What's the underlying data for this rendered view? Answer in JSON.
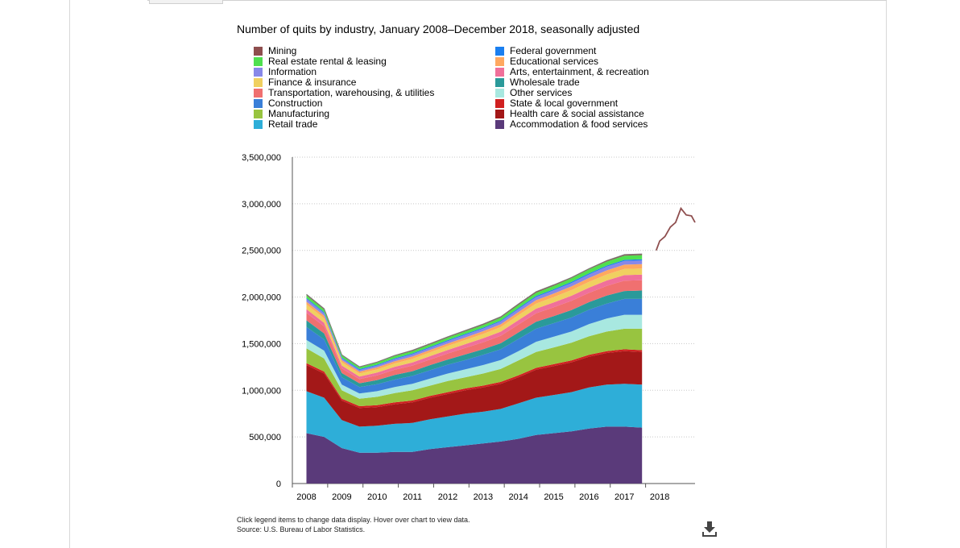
{
  "chart_data": {
    "type": "area",
    "stacked": true,
    "title": "Number of quits by industry, January 2008–December 2018, seasonally adjusted",
    "xlabel": "",
    "ylabel": "",
    "x_tick_labels": [
      "2008",
      "2009",
      "2010",
      "2011",
      "2012",
      "2013",
      "2014",
      "2015",
      "2016",
      "2017",
      "2018"
    ],
    "y_tick_labels": [
      "0",
      "500,000",
      "1,000,000",
      "1,500,000",
      "2,000,000",
      "2,500,000",
      "3,000,000",
      "3,500,000"
    ],
    "ylim": [
      0,
      3500000
    ],
    "grid": "horizontal dotted",
    "legend_position": "top",
    "legend_left": [
      {
        "name": "Mining",
        "color": "#8e4e4e"
      },
      {
        "name": "Real estate rental & leasing",
        "color": "#4fe04f"
      },
      {
        "name": "Information",
        "color": "#8888e8"
      },
      {
        "name": "Finance & insurance",
        "color": "#f0d060"
      },
      {
        "name": "Transportation, warehousing, & utilities",
        "color": "#f07070"
      },
      {
        "name": "Construction",
        "color": "#3a7fd8"
      },
      {
        "name": "Manufacturing",
        "color": "#98c440"
      },
      {
        "name": "Retail trade",
        "color": "#2eaed8"
      }
    ],
    "legend_right": [
      {
        "name": "Federal government",
        "color": "#1a7ff0"
      },
      {
        "name": "Educational services",
        "color": "#ffa860"
      },
      {
        "name": "Arts, entertainment, & recreation",
        "color": "#f0709a"
      },
      {
        "name": "Wholesale trade",
        "color": "#2a9a9a"
      },
      {
        "name": "Other services",
        "color": "#a8e8e0"
      },
      {
        "name": "State & local government",
        "color": "#d02020"
      },
      {
        "name": "Health care & social assistance",
        "color": "#a31818"
      },
      {
        "name": "Accommodation & food services",
        "color": "#5a3a7a"
      }
    ],
    "stack_order_bottom_to_top": [
      "Accommodation & food services",
      "Retail trade",
      "Health care & social assistance",
      "State & local government",
      "Manufacturing",
      "Other services",
      "Construction",
      "Wholesale trade",
      "Transportation, warehousing, & utilities",
      "Arts, entertainment, & recreation",
      "Finance & insurance",
      "Educational services",
      "Information",
      "Federal government",
      "Real estate rental & leasing",
      "Mining"
    ],
    "stack_x": [
      2008.0,
      2008.5,
      2009.0,
      2009.5,
      2010.0,
      2010.5,
      2011.0,
      2011.5,
      2012.0,
      2012.5,
      2013.0,
      2013.5,
      2014.0,
      2014.5,
      2015.0,
      2015.5,
      2016.0,
      2016.5,
      2017.0,
      2017.5
    ],
    "stack_x_note": "year start values (Jan); series plotted through Dec 2017",
    "series": [
      {
        "name": "Accommodation & food services",
        "values": [
          540000,
          500000,
          380000,
          330000,
          330000,
          340000,
          340000,
          370000,
          390000,
          410000,
          430000,
          450000,
          480000,
          520000,
          540000,
          560000,
          590000,
          610000,
          610000,
          600000
        ]
      },
      {
        "name": "Retail trade",
        "values": [
          450000,
          420000,
          300000,
          280000,
          290000,
          300000,
          310000,
          320000,
          330000,
          340000,
          340000,
          350000,
          380000,
          400000,
          410000,
          420000,
          440000,
          450000,
          460000,
          460000
        ]
      },
      {
        "name": "Health care & social assistance",
        "values": [
          280000,
          260000,
          210000,
          200000,
          200000,
          210000,
          220000,
          230000,
          240000,
          250000,
          260000,
          270000,
          280000,
          300000,
          310000,
          320000,
          330000,
          340000,
          350000,
          350000
        ]
      },
      {
        "name": "State & local government",
        "values": [
          20000,
          20000,
          20000,
          20000,
          20000,
          20000,
          20000,
          20000,
          20000,
          20000,
          20000,
          20000,
          20000,
          20000,
          20000,
          20000,
          20000,
          20000,
          20000,
          20000
        ]
      },
      {
        "name": "Manufacturing",
        "values": [
          160000,
          140000,
          90000,
          80000,
          90000,
          100000,
          110000,
          110000,
          120000,
          120000,
          130000,
          140000,
          160000,
          170000,
          180000,
          190000,
          200000,
          210000,
          220000,
          230000
        ]
      },
      {
        "name": "Other services",
        "values": [
          90000,
          85000,
          60000,
          55000,
          60000,
          65000,
          70000,
          75000,
          80000,
          85000,
          90000,
          95000,
          100000,
          110000,
          115000,
          120000,
          130000,
          140000,
          150000,
          150000
        ]
      },
      {
        "name": "Construction",
        "values": [
          140000,
          120000,
          80000,
          70000,
          75000,
          80000,
          85000,
          90000,
          95000,
          100000,
          110000,
          115000,
          130000,
          140000,
          145000,
          150000,
          155000,
          160000,
          170000,
          170000
        ]
      },
      {
        "name": "Wholesale trade",
        "values": [
          70000,
          65000,
          45000,
          40000,
          45000,
          50000,
          50000,
          55000,
          55000,
          60000,
          60000,
          65000,
          70000,
          75000,
          75000,
          80000,
          80000,
          85000,
          85000,
          90000
        ]
      },
      {
        "name": "Transportation, warehousing, & utilities",
        "values": [
          80000,
          75000,
          50000,
          45000,
          50000,
          55000,
          60000,
          60000,
          65000,
          70000,
          75000,
          80000,
          85000,
          90000,
          95000,
          100000,
          100000,
          105000,
          110000,
          110000
        ]
      },
      {
        "name": "Arts, entertainment, & recreation",
        "values": [
          40000,
          38000,
          30000,
          28000,
          30000,
          32000,
          34000,
          36000,
          38000,
          40000,
          42000,
          44000,
          48000,
          50000,
          52000,
          54000,
          56000,
          58000,
          60000,
          60000
        ]
      },
      {
        "name": "Finance & insurance",
        "values": [
          50000,
          48000,
          36000,
          32000,
          34000,
          36000,
          38000,
          40000,
          42000,
          44000,
          46000,
          48000,
          52000,
          55000,
          58000,
          60000,
          62000,
          64000,
          66000,
          66000
        ]
      },
      {
        "name": "Educational services",
        "values": [
          30000,
          28000,
          22000,
          20000,
          22000,
          24000,
          25000,
          26000,
          27000,
          28000,
          30000,
          31000,
          34000,
          36000,
          38000,
          40000,
          42000,
          44000,
          46000,
          46000
        ]
      },
      {
        "name": "Information",
        "values": [
          30000,
          28000,
          20000,
          18000,
          20000,
          22000,
          24000,
          24000,
          26000,
          28000,
          28000,
          30000,
          32000,
          34000,
          35000,
          36000,
          38000,
          40000,
          40000,
          40000
        ]
      },
      {
        "name": "Federal government",
        "values": [
          10000,
          10000,
          9000,
          9000,
          9000,
          9000,
          10000,
          10000,
          10000,
          10000,
          10000,
          10000,
          11000,
          11000,
          11000,
          12000,
          12000,
          12000,
          12000,
          12000
        ]
      },
      {
        "name": "Real estate rental & leasing",
        "values": [
          30000,
          28000,
          22000,
          20000,
          22000,
          24000,
          25000,
          26000,
          27000,
          28000,
          30000,
          31000,
          33000,
          35000,
          37000,
          39000,
          41000,
          43000,
          45000,
          46000
        ]
      },
      {
        "name": "Mining",
        "values": [
          10000,
          10000,
          6000,
          5000,
          6000,
          7000,
          8000,
          8000,
          9000,
          9000,
          9000,
          10000,
          11000,
          12000,
          10000,
          9000,
          9000,
          10000,
          11000,
          12000
        ]
      }
    ],
    "total_line": {
      "name": "Mining",
      "x": [
        2017.9,
        2018.0,
        2018.15,
        2018.3,
        2018.45,
        2018.6,
        2018.75,
        2018.9,
        2019.0
      ],
      "values": [
        2500000,
        2600000,
        2650000,
        2750000,
        2800000,
        2950000,
        2880000,
        2870000,
        2800000
      ]
    }
  },
  "notes": {
    "line1": "Click legend items to change data display. Hover over chart to view data.",
    "line2": "Source: U.S. Bureau of Labor Statistics."
  },
  "icons": {
    "download": "download-icon"
  }
}
